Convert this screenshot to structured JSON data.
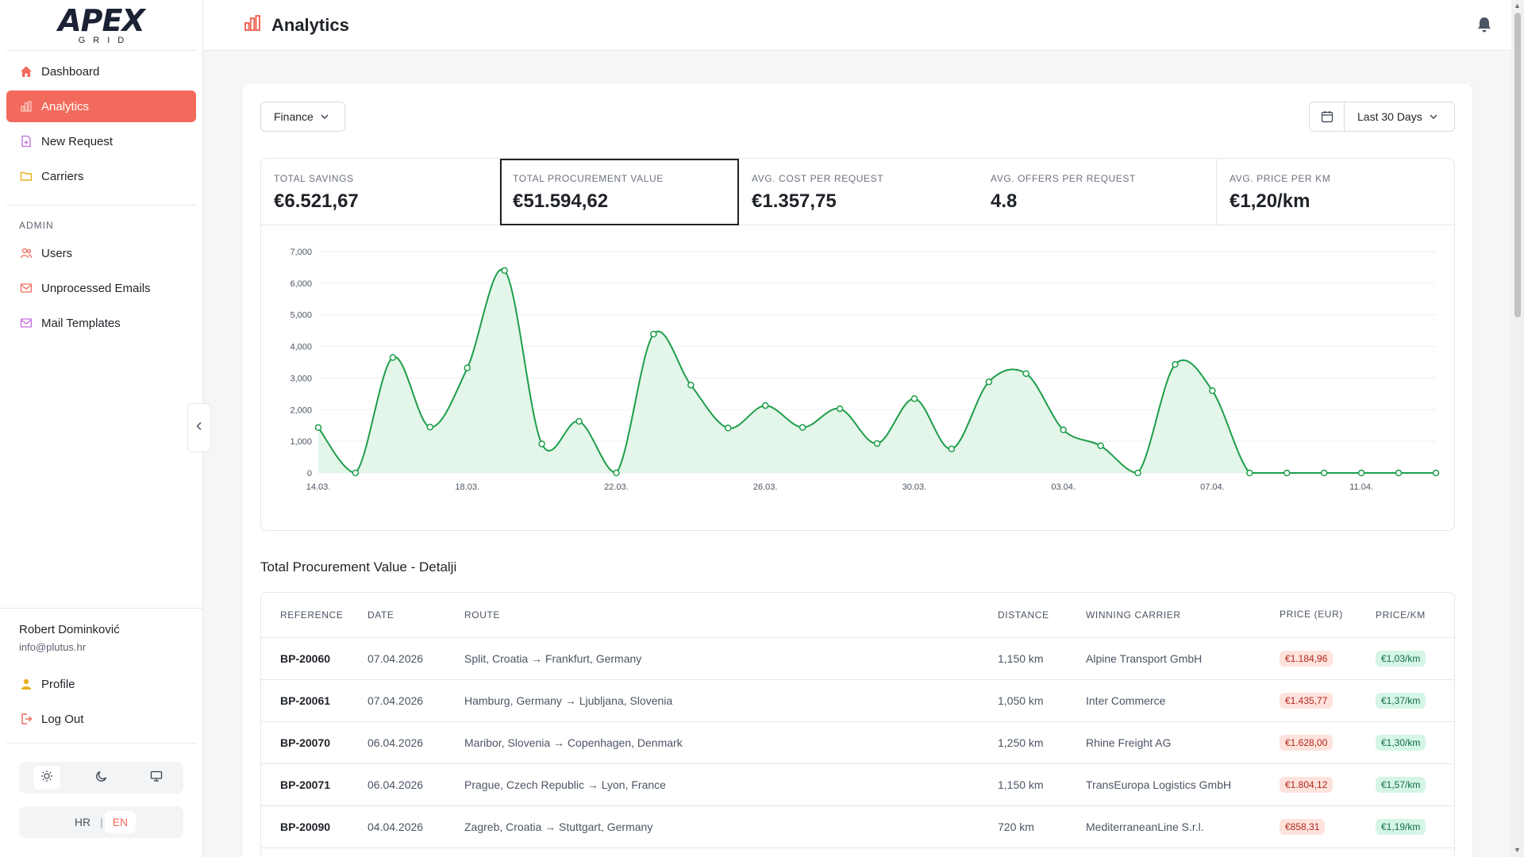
{
  "logo": {
    "main": "APEX",
    "sub": "GRID"
  },
  "nav": [
    {
      "label": "Dashboard",
      "icon": "home-icon"
    },
    {
      "label": "Analytics",
      "icon": "bar-chart-icon",
      "active": true
    },
    {
      "label": "New Request",
      "icon": "file-plus-icon"
    },
    {
      "label": "Carriers",
      "icon": "folder-icon"
    }
  ],
  "admin": {
    "label": "ADMIN",
    "items": [
      {
        "label": "Users",
        "icon": "users-icon"
      },
      {
        "label": "Unprocessed Emails",
        "icon": "mail-icon"
      },
      {
        "label": "Mail Templates",
        "icon": "mail-template-icon"
      }
    ]
  },
  "user": {
    "name": "Robert Dominković",
    "email": "info@plutus.hr"
  },
  "account": {
    "profile": "Profile",
    "logout": "Log Out"
  },
  "lang": {
    "hr": "HR",
    "en": "EN",
    "active": "EN"
  },
  "header": {
    "title": "Analytics"
  },
  "filters": {
    "category": "Finance",
    "range": "Last 30 Days"
  },
  "kpis": [
    {
      "label": "TOTAL SAVINGS",
      "value": "€6.521,67"
    },
    {
      "label": "TOTAL PROCUREMENT VALUE",
      "value": "€51.594,62",
      "selected": true
    },
    {
      "label": "AVG. COST PER REQUEST",
      "value": "€1.357,75"
    },
    {
      "label": "AVG. OFFERS PER REQUEST",
      "value": "4.8"
    },
    {
      "label": "AVG. PRICE PER KM",
      "value": "€1,20/km"
    }
  ],
  "chart_data": {
    "type": "area",
    "y_ticks": [
      "0",
      "1,000",
      "2,000",
      "3,000",
      "4,000",
      "5,000",
      "6,000",
      "7,000"
    ],
    "ylim": [
      0,
      7000
    ],
    "grid": true,
    "x_tick_labels": [
      "14.03.",
      "18.03.",
      "22.03.",
      "26.03.",
      "30.03.",
      "03.04.",
      "07.04.",
      "11.04."
    ],
    "x_tick_days": [
      0,
      4,
      8,
      12,
      16,
      20,
      24,
      28
    ],
    "days": [
      0,
      1,
      2,
      3,
      4,
      5,
      6,
      7,
      8,
      9,
      10,
      11,
      12,
      13,
      14,
      15,
      16,
      17,
      18,
      19,
      20,
      21,
      22,
      23,
      24,
      25,
      26,
      27,
      28,
      29,
      30
    ],
    "values": [
      1435,
      0,
      3650,
      1450,
      3320,
      6400,
      920,
      1630,
      0,
      4390,
      2780,
      1420,
      2130,
      1440,
      2030,
      930,
      2350,
      760,
      2880,
      3140,
      1360,
      860,
      0,
      3430,
      2600,
      0,
      0,
      0,
      0,
      0,
      0
    ],
    "color": "#1e9e4a",
    "fill": "#e4f5ea"
  },
  "table": {
    "title": "Total Procurement Value - Detalji",
    "headers": [
      "REFERENCE",
      "DATE",
      "ROUTE",
      "DISTANCE",
      "WINNING CARRIER",
      "PRICE (EUR)",
      "PRICE/KM"
    ],
    "rows": [
      {
        "ref": "BP-20060",
        "date": "07.04.2026",
        "route": "Split, Croatia → Frankfurt, Germany",
        "distance": "1,150 km",
        "carrier": "Alpine Transport GmbH",
        "price": "€1.184,96",
        "per_km": "€1,03/km"
      },
      {
        "ref": "BP-20061",
        "date": "07.04.2026",
        "route": "Hamburg, Germany → Ljubljana, Slovenia",
        "distance": "1,050 km",
        "carrier": "Inter Commerce",
        "price": "€1.435,77",
        "per_km": "€1,37/km"
      },
      {
        "ref": "BP-20070",
        "date": "06.04.2026",
        "route": "Maribor, Slovenia → Copenhagen, Denmark",
        "distance": "1,250 km",
        "carrier": "Rhine Freight AG",
        "price": "€1.628,00",
        "per_km": "€1,30/km"
      },
      {
        "ref": "BP-20071",
        "date": "06.04.2026",
        "route": "Prague, Czech Republic → Lyon, France",
        "distance": "1,150 km",
        "carrier": "TransEuropa Logistics GmbH",
        "price": "€1.804,12",
        "per_km": "€1,57/km"
      },
      {
        "ref": "BP-20090",
        "date": "04.04.2026",
        "route": "Zagreb, Croatia → Stuttgart, Germany",
        "distance": "720 km",
        "carrier": "MediterraneanLine S.r.l.",
        "price": "€858,31",
        "per_km": "€1,19/km"
      }
    ]
  }
}
